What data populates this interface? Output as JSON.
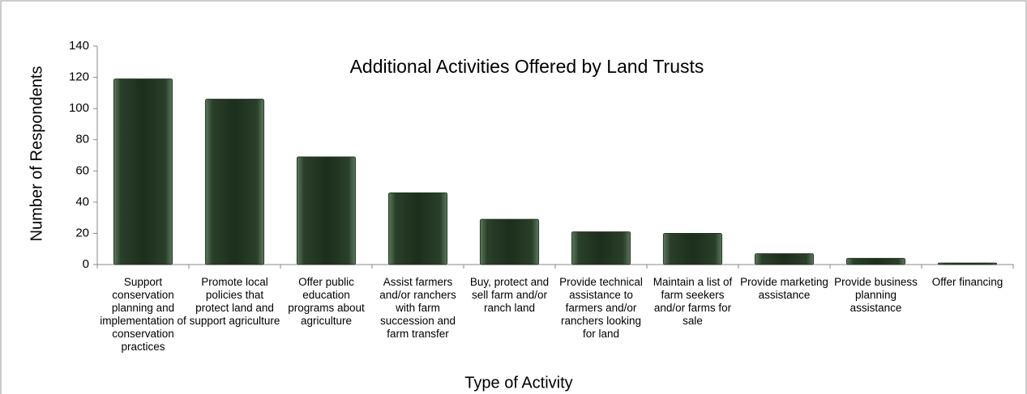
{
  "chart_data": {
    "type": "bar",
    "title": "Additional Activities Offered by Land Trusts",
    "x_label": "Type of Activity",
    "y_label": "Number of Respondents",
    "categories": [
      "Support conservation planning and implementation of conservation practices",
      "Promote local policies that protect land and support agriculture",
      "Offer public education programs about agriculture",
      "Assist farmers and/or ranchers with farm succession and farm transfer",
      "Buy, protect and sell farm and/or ranch land",
      "Provide technical assistance to farmers and/or ranchers looking for land",
      "Maintain a list of farm seekers and/or farms for sale",
      "Provide marketing assistance",
      "Provide business planning assistance",
      "Offer financing"
    ],
    "values": [
      119,
      106,
      69,
      46,
      29,
      21,
      20,
      7,
      4,
      1
    ],
    "color": "#1c2e1c",
    "ylim": [
      0,
      140
    ],
    "yticks": [
      0,
      20,
      40,
      60,
      80,
      100,
      120,
      140
    ],
    "grid": false
  }
}
